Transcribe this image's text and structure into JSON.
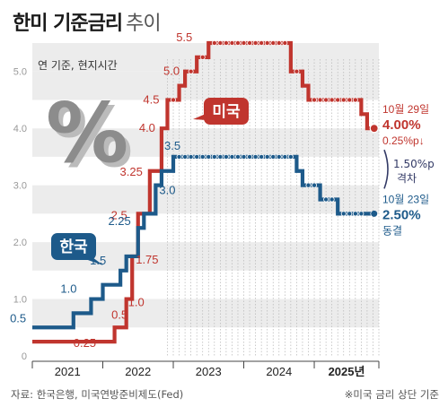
{
  "header": {
    "title": "한미 기준금리",
    "title_sub": "추이",
    "unit": "연 기준, 현지시간"
  },
  "footer": {
    "source": "자료: 한국은행, 미국연방준비제도(Fed)",
    "note": "※미국 금리 상단 기준"
  },
  "colors": {
    "us": "#c0352e",
    "korea": "#1d5a8a",
    "band": "#ececec",
    "gap": "#333a66"
  },
  "chart_data": {
    "type": "line",
    "step": true,
    "x_axis": {
      "range": [
        "2021-01",
        "2025-11"
      ],
      "year_labels": [
        "2021",
        "2022",
        "2023",
        "2024",
        "2025년"
      ]
    },
    "y_axis": {
      "range": [
        0,
        5.5
      ],
      "ticks": [
        "0",
        "1.0",
        "2.0",
        "3.0",
        "4.0",
        "5.0"
      ]
    },
    "percent_symbol": "%",
    "series": [
      {
        "name": "미국",
        "key": "us",
        "points": [
          [
            "2021-01",
            0.25
          ],
          [
            "2022-03",
            0.5
          ],
          [
            "2022-05",
            1.0
          ],
          [
            "2022-06",
            1.75
          ],
          [
            "2022-07",
            2.5
          ],
          [
            "2022-09",
            3.25
          ],
          [
            "2022-11",
            4.0
          ],
          [
            "2022-12",
            4.5
          ],
          [
            "2023-02",
            4.75
          ],
          [
            "2023-03",
            5.0
          ],
          [
            "2023-05",
            5.25
          ],
          [
            "2023-07",
            5.5
          ],
          [
            "2024-09",
            5.0
          ],
          [
            "2024-11",
            4.75
          ],
          [
            "2024-12",
            4.5
          ],
          [
            "2025-09",
            4.25
          ],
          [
            "2025-10",
            4.0
          ]
        ],
        "labels": [
          {
            "date": "2022-02",
            "value": 0.25,
            "text": "0.25"
          },
          {
            "date": "2022-04",
            "value": 0.5,
            "text": "0.5"
          },
          {
            "date": "2022-05",
            "value": 1.0,
            "text": "1.0"
          },
          {
            "date": "2022-06",
            "value": 1.75,
            "text": "1.75"
          },
          {
            "date": "2022-07",
            "value": 2.5,
            "text": "2.5"
          },
          {
            "date": "2022-09",
            "value": 3.25,
            "text": "3.25"
          },
          {
            "date": "2022-11",
            "value": 4.0,
            "text": "4.0"
          },
          {
            "date": "2022-12",
            "value": 4.5,
            "text": "4.5"
          },
          {
            "date": "2023-03",
            "value": 5.0,
            "text": "5.0"
          },
          {
            "date": "2023-07",
            "value": 5.5,
            "text": "5.5"
          }
        ],
        "end_annotation": {
          "date": "10월 29일",
          "value": "4.00%",
          "change": "0.25%p↓"
        }
      },
      {
        "name": "한국",
        "key": "korea",
        "points": [
          [
            "2021-01",
            0.5
          ],
          [
            "2021-08",
            0.75
          ],
          [
            "2021-11",
            1.0
          ],
          [
            "2022-01",
            1.25
          ],
          [
            "2022-04",
            1.5
          ],
          [
            "2022-05",
            1.75
          ],
          [
            "2022-07",
            2.25
          ],
          [
            "2022-08",
            2.5
          ],
          [
            "2022-10",
            3.0
          ],
          [
            "2022-11",
            3.25
          ],
          [
            "2023-01",
            3.5
          ],
          [
            "2024-10",
            3.25
          ],
          [
            "2024-11",
            3.0
          ],
          [
            "2025-02",
            2.75
          ],
          [
            "2025-05",
            2.5
          ],
          [
            "2025-10",
            2.5
          ]
        ],
        "labels": [
          {
            "date": "2021-03",
            "value": 0.5,
            "text": "0.5"
          },
          {
            "date": "2021-11",
            "value": 1.0,
            "text": "1.0"
          },
          {
            "date": "2022-04",
            "value": 1.5,
            "text": "1.5"
          },
          {
            "date": "2022-07",
            "value": 2.25,
            "text": "2.25"
          },
          {
            "date": "2022-10",
            "value": 3.0,
            "text": "3.0"
          },
          {
            "date": "2023-01",
            "value": 3.5,
            "text": "3.5"
          }
        ],
        "end_annotation": {
          "date": "10월 23일",
          "value": "2.50%",
          "change": "동결"
        }
      }
    ],
    "gap_annotation": {
      "value": "1.50%p",
      "label": "격차"
    }
  }
}
